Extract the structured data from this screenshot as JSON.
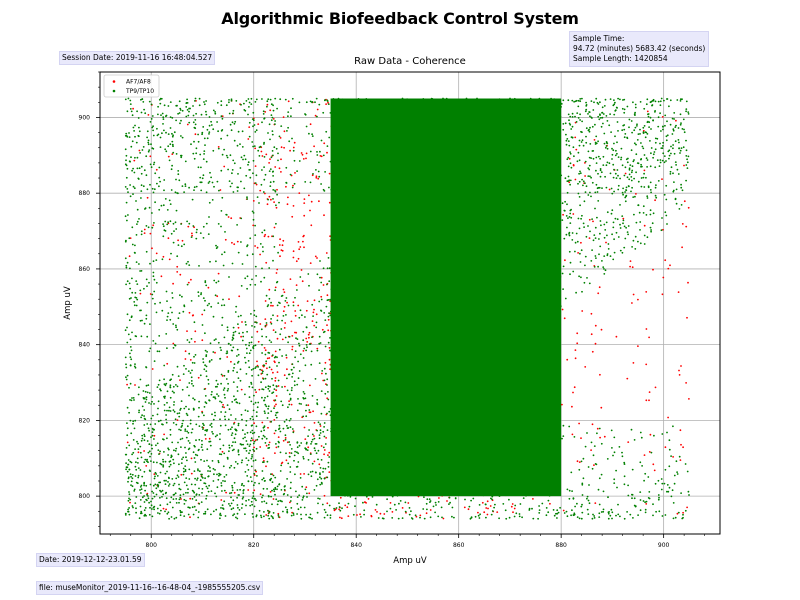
{
  "header": {
    "title": "Algorithmic Biofeedback Control System"
  },
  "session_box": {
    "text": "Session Date: 2019-11-16 16:48:04.527"
  },
  "sample_box": {
    "line1": "Sample Time:",
    "line2": "94.72 (minutes) 5683.42 (seconds)",
    "line3": "Sample Length: 1420854"
  },
  "footer": {
    "date": "Date: 2019-12-12-23.01.59",
    "file": "file: museMonitor_2019-11-16--16-48-04_-1985555205.csv"
  },
  "colors": {
    "af": "#ff0000",
    "tp": "#008000",
    "grid": "#b0b0b0"
  },
  "chart_data": {
    "type": "scatter",
    "title": "Raw Data - Coherence",
    "xlabel": "Amp uV",
    "ylabel": "Amp uV",
    "xlim": [
      790,
      911
    ],
    "ylim": [
      790,
      912
    ],
    "xticks": [
      800,
      820,
      840,
      860,
      880,
      900
    ],
    "yticks": [
      800,
      820,
      840,
      860,
      880,
      900
    ],
    "grid": true,
    "legend_position": "top-left",
    "series": [
      {
        "name": "AF7/AF8",
        "color": "#ff0000",
        "x_range": [
          795,
          905
        ],
        "y_range": [
          794,
          905
        ],
        "dense_x_range": [
          830,
          865
        ],
        "dense_y_range": [
          795,
          905
        ]
      },
      {
        "name": "TP9/TP10",
        "color": "#008000",
        "x_range": [
          795,
          905
        ],
        "y_range": [
          794,
          905
        ],
        "dense_x_range": [
          835,
          880
        ],
        "dense_y_range": [
          800,
          905
        ]
      }
    ]
  }
}
